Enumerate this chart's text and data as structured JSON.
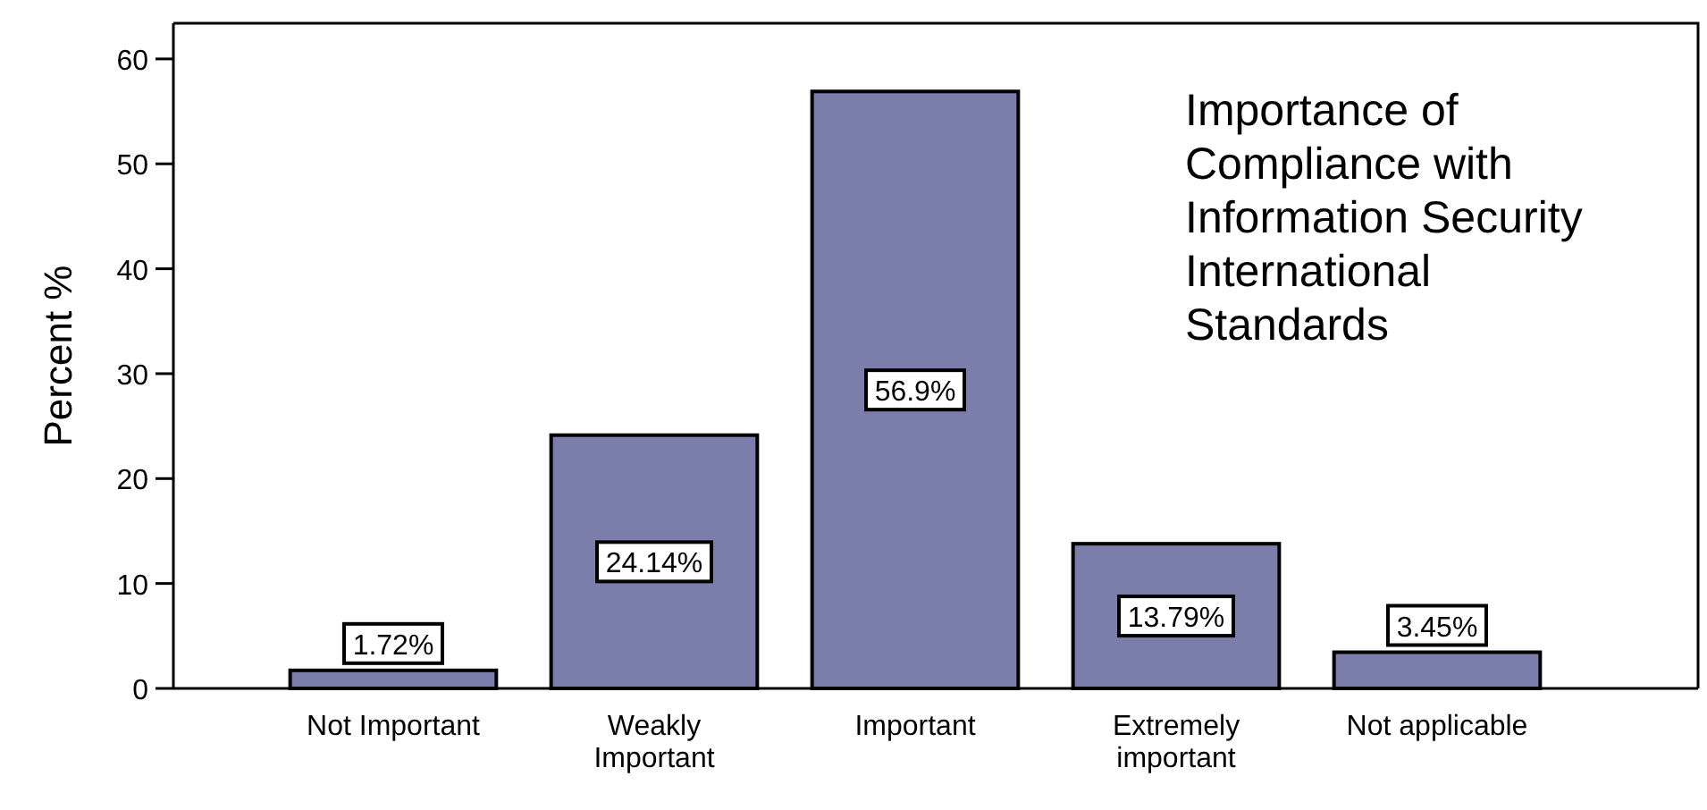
{
  "chart_data": {
    "type": "bar",
    "title": "Importance of Compliance with Information Security International Standards",
    "ylabel": "Percent %",
    "categories": [
      "Not Important",
      "Weakly Important",
      "Important",
      "Extremely important",
      "Not applicable"
    ],
    "values": [
      1.72,
      24.14,
      56.9,
      13.79,
      3.45
    ],
    "value_labels": [
      "1.72%",
      "24.14%",
      "56.9%",
      "13.79%",
      "3.45%"
    ],
    "color": "#7b7dab",
    "ylim": [
      0,
      63.4
    ],
    "yticks": [
      0,
      10,
      20,
      30,
      40,
      50,
      60
    ],
    "grid": false
  }
}
